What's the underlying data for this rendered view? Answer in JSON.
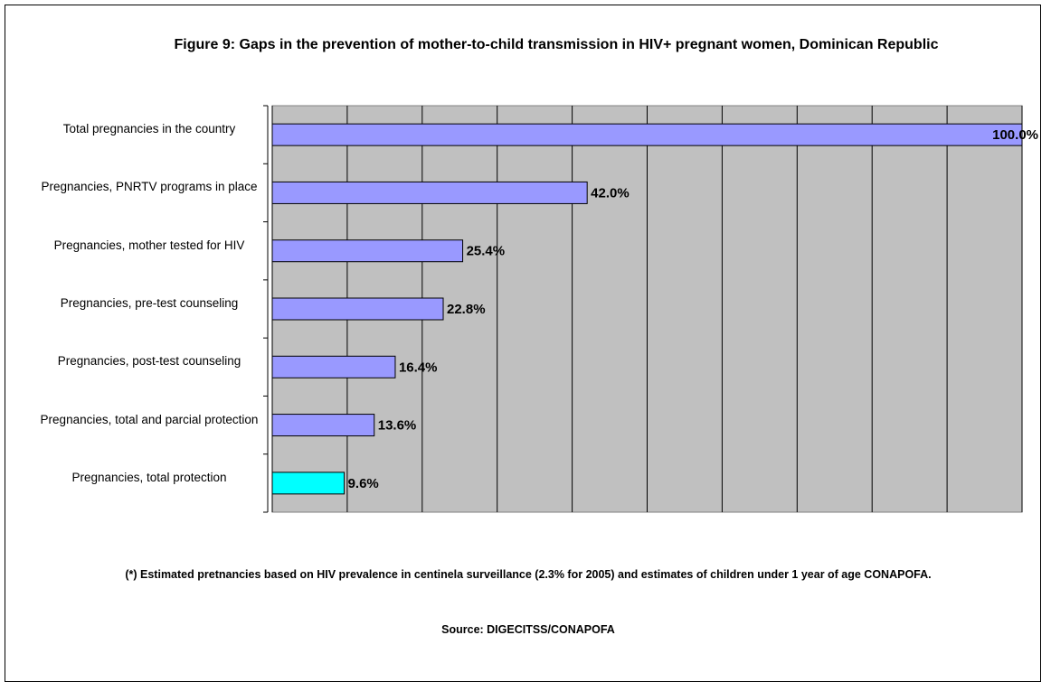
{
  "chart_data": {
    "type": "barh",
    "title": "Figure 9: Gaps in the prevention of mother-to-child transmission in HIV+ pregnant women, Dominican Republic",
    "categories": [
      "Total pregnancies in the country",
      "Pregnancies, PNRTV programs in place",
      "Pregnancies, mother tested for HIV",
      "Pregnancies, pre-test counseling",
      "Pregnancies, post-test counseling",
      "Pregnancies, total and parcial protection",
      "Pregnancies, total protection"
    ],
    "values": [
      100.0,
      42.0,
      25.4,
      22.8,
      16.4,
      13.6,
      9.6
    ],
    "value_labels": [
      "100.0%",
      "42.0%",
      "25.4%",
      "22.8%",
      "16.4%",
      "13.6%",
      "9.6%"
    ],
    "colors": [
      "#9999ff",
      "#9999ff",
      "#9999ff",
      "#9999ff",
      "#9999ff",
      "#9999ff",
      "#00ffff"
    ],
    "xlim": [
      0,
      100
    ],
    "xticks": [
      0,
      10,
      20,
      30,
      40,
      50,
      60,
      70,
      80,
      90,
      100
    ],
    "grid": true,
    "note": "(*) Estimated pretnancies based on HIV prevalence in centinela surveillance (2.3% for 2005) and estimates of children under 1 year of age CONAPOFA.",
    "source": "Source: DIGECITSS/CONAPOFA"
  }
}
